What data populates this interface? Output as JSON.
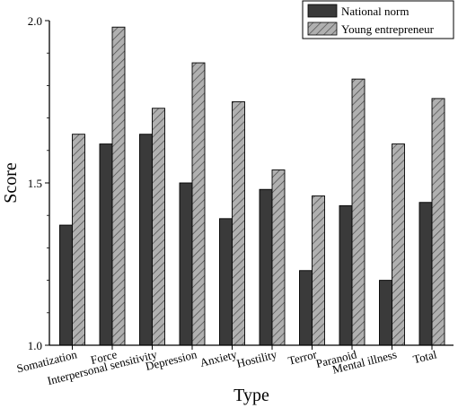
{
  "chart_data": {
    "type": "bar",
    "xlabel": "Type",
    "ylabel": "Score",
    "ylim": [
      1.0,
      2.0
    ],
    "yticks": [
      "1.0",
      "1.5",
      "2.0"
    ],
    "categories": [
      "Somatization",
      "Force",
      "Interpersonal sensitivity",
      "Depression",
      "Anxiety",
      "Hostility",
      "Terror",
      "Paranoid",
      "Mental illness",
      "Total"
    ],
    "series": [
      {
        "name": "National norm",
        "color": "#3a3a3a",
        "pattern": "solid",
        "values": [
          1.37,
          1.62,
          1.65,
          1.5,
          1.39,
          1.48,
          1.23,
          1.43,
          1.2,
          1.44
        ]
      },
      {
        "name": "Young entrepreneur",
        "color": "#9a9a9a",
        "pattern": "hatched",
        "values": [
          1.65,
          1.98,
          1.73,
          1.87,
          1.75,
          1.54,
          1.46,
          1.82,
          1.62,
          1.76
        ]
      }
    ],
    "legend_position": "top-right",
    "grid": false
  }
}
